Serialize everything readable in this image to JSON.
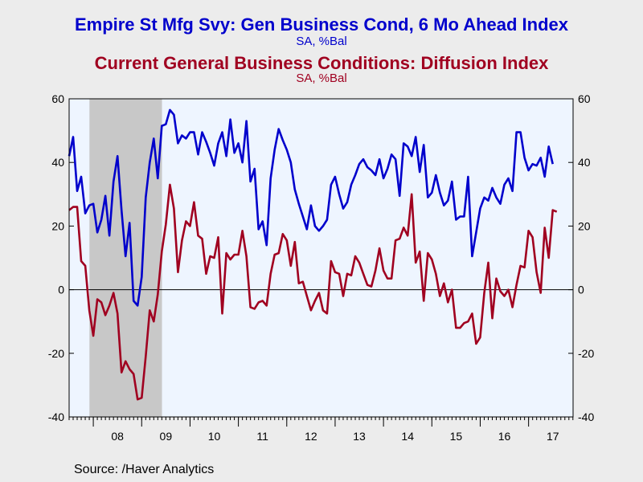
{
  "header": {
    "title1": "Empire St Mfg Svy: Gen Business Cond, 6 Mo Ahead Index",
    "subtitle1": "SA, %Bal",
    "title2": "Current General Business Conditions: Diffusion Index",
    "subtitle2": "SA, %Bal"
  },
  "source": "Source:  /Haver Analytics",
  "colors": {
    "series1": "#0000cc",
    "series2": "#a00020",
    "plot_bg": "#eef5ff",
    "recession": "#c8c8c8",
    "page_bg": "#ececec"
  },
  "chart_data": {
    "type": "line",
    "ylim": [
      -40,
      60
    ],
    "yticks": [
      -40,
      -20,
      0,
      20,
      40,
      60
    ],
    "xlim": [
      2007.5,
      2017.92
    ],
    "xticks": [
      {
        "label": "08",
        "x": 2008.5
      },
      {
        "label": "09",
        "x": 2009.5
      },
      {
        "label": "10",
        "x": 2010.5
      },
      {
        "label": "11",
        "x": 2011.5
      },
      {
        "label": "12",
        "x": 2012.5
      },
      {
        "label": "13",
        "x": 2013.5
      },
      {
        "label": "14",
        "x": 2014.5
      },
      {
        "label": "15",
        "x": 2015.5
      },
      {
        "label": "16",
        "x": 2016.5
      },
      {
        "label": "17",
        "x": 2017.5
      }
    ],
    "year_boundaries": [
      2008,
      2009,
      2010,
      2011,
      2012,
      2013,
      2014,
      2015,
      2016,
      2017
    ],
    "recession": [
      2007.92,
      2009.42
    ],
    "zero_line": true,
    "grid": false,
    "series": [
      {
        "name": "Empire St Mfg Svy: Gen Business Cond, 6 Mo Ahead Index",
        "color": "#0000cc",
        "x_start": 2007.5,
        "step": 0.08333,
        "values": [
          42,
          48,
          31,
          35.5,
          24,
          26.5,
          27,
          18,
          22,
          29.5,
          17,
          34,
          42,
          25,
          10.5,
          21,
          -3.5,
          -5,
          4,
          29,
          40,
          47.5,
          35,
          51.5,
          52,
          56.5,
          55,
          46,
          48.5,
          47.5,
          49.5,
          49.5,
          42.5,
          49.5,
          46.5,
          43,
          39,
          46,
          49.5,
          42,
          53.5,
          43,
          46,
          40,
          53,
          34,
          38,
          19,
          21.5,
          14,
          35,
          44,
          50.5,
          47,
          44,
          40,
          31.5,
          27,
          23,
          19,
          26.5,
          20,
          18.5,
          20,
          22,
          33,
          35.5,
          30,
          25.5,
          27.5,
          33,
          36,
          39.5,
          41,
          38.5,
          37.5,
          36,
          41,
          35,
          38,
          42.5,
          41,
          29.5,
          46,
          45,
          42,
          48,
          37,
          45.5,
          29,
          30.5,
          36,
          30.5,
          26.5,
          28,
          34,
          22,
          23,
          23,
          35.5,
          10.5,
          18,
          25.5,
          29,
          28,
          32,
          29,
          27,
          33,
          35,
          31,
          49.5,
          49.5,
          41.5,
          37.5,
          39.5,
          39,
          41.5,
          35.5,
          45,
          39.5
        ]
      },
      {
        "name": "Current General Business Conditions: Diffusion Index",
        "color": "#a00020",
        "x_start": 2007.5,
        "step": 0.08333,
        "values": [
          25,
          26,
          26,
          9,
          7.5,
          -6.5,
          -14.5,
          -3,
          -4,
          -8,
          -5,
          -1,
          -7.5,
          -26,
          -22.5,
          -25,
          -26.5,
          -34.5,
          -34,
          -21,
          -6.5,
          -10,
          -1.5,
          12,
          20.5,
          33,
          25.5,
          5.5,
          15.5,
          21.5,
          20,
          27.5,
          17,
          16,
          5,
          10.5,
          10,
          16.5,
          -7.5,
          11.5,
          9.5,
          11,
          11,
          18.5,
          10.5,
          -5.5,
          -6,
          -4,
          -3.5,
          -5,
          5,
          11,
          11.5,
          17.5,
          15.5,
          7.5,
          15,
          2,
          2.5,
          -2,
          -6.5,
          -3.5,
          -1,
          -6.5,
          -7.5,
          9,
          5.5,
          5,
          -2,
          5,
          4.5,
          10.5,
          8.5,
          5,
          1.5,
          1,
          6,
          13,
          6,
          3.5,
          3.5,
          15.5,
          16,
          19.5,
          17,
          30,
          8.5,
          12,
          -3.5,
          11.5,
          9.5,
          5,
          -2,
          2,
          -4,
          0,
          -12,
          -12,
          -10.5,
          -10,
          -7.5,
          -17,
          -15,
          -1,
          8.5,
          -9,
          3.5,
          -0.5,
          -2,
          0,
          -5.5,
          1.5,
          7.5,
          7,
          18.5,
          16.5,
          5.5,
          -1,
          19.5,
          10,
          25,
          24.5
        ]
      }
    ]
  }
}
